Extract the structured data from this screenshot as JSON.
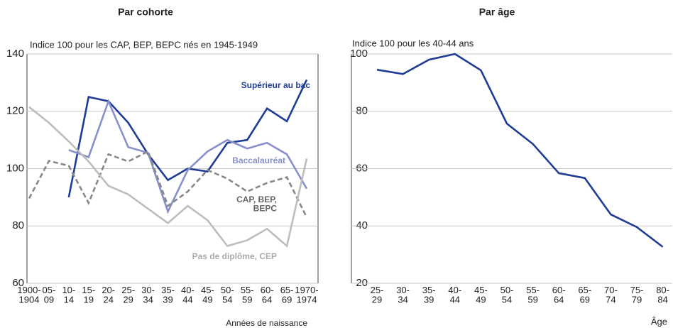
{
  "chart_data": [
    {
      "type": "line",
      "title": "Par cohorte",
      "subtitle": "Indice 100 pour les CAP, BEP, BEPC nés en 1945-1949",
      "x_label": "Années de naissance",
      "categories": [
        "1900-1904",
        "05-09",
        "10-14",
        "15-19",
        "20-24",
        "25-29",
        "30-34",
        "35-39",
        "40-44",
        "45-49",
        "50-54",
        "55-59",
        "60-64",
        "65-69",
        "1970-1974"
      ],
      "ylim": [
        60,
        140
      ],
      "yticks": [
        60,
        80,
        100,
        120,
        140
      ],
      "grid": true,
      "series": [
        {
          "name": "Supérieur au bac",
          "color": "#1f3c96",
          "values": [
            null,
            null,
            90,
            125,
            123.5,
            116,
            105,
            96,
            100,
            99,
            109,
            110,
            121,
            116.5,
            131
          ]
        },
        {
          "name": "Baccalauréat",
          "color": "#8890cc",
          "values": [
            null,
            null,
            106.5,
            104,
            123.5,
            107.5,
            105.5,
            85,
            99.5,
            106,
            110,
            107,
            109,
            105,
            93
          ]
        },
        {
          "name": "CAP, BEP, BEPC",
          "color": "#888888",
          "dashed": true,
          "values": [
            89.6,
            102.7,
            101,
            88,
            105,
            102.5,
            106,
            87,
            92,
            99.5,
            96.5,
            92,
            95,
            97,
            83
          ]
        },
        {
          "name": "Pas de diplôme, CEP",
          "color": "#bdbdbd",
          "values": [
            121.5,
            116,
            109.5,
            102.5,
            94,
            91,
            86,
            81,
            87,
            82,
            73,
            75,
            79,
            73,
            103.5
          ]
        }
      ]
    },
    {
      "type": "line",
      "title": "Par âge",
      "subtitle": "Indice 100 pour les 40-44 ans",
      "x_label": "Âge",
      "categories": [
        "25-29",
        "30-34",
        "35-39",
        "40-44",
        "45-49",
        "50-54",
        "55-59",
        "60-64",
        "65-69",
        "70-74",
        "75-79",
        "80-84"
      ],
      "ylim": [
        20,
        100
      ],
      "yticks": [
        20,
        40,
        60,
        80,
        100
      ],
      "grid": true,
      "series": [
        {
          "color": "#1f3c96",
          "values": [
            94.5,
            93,
            98,
            100,
            94.3,
            75.7,
            68.6,
            58.4,
            56.7,
            44,
            39.6,
            32.7
          ]
        }
      ]
    }
  ]
}
